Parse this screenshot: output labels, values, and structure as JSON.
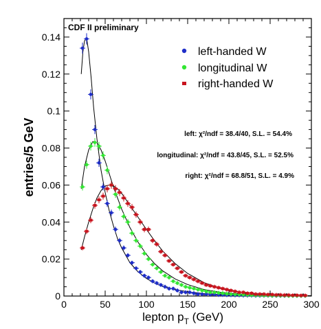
{
  "chart_data": {
    "type": "scatter",
    "title": "",
    "label": "CDF II preliminary",
    "xlabel": "lepton p",
    "xlabel_sub": "T",
    "xlabel_unit": " (GeV)",
    "ylabel": "entries/5 GeV",
    "xlim": [
      0,
      300
    ],
    "ylim": [
      0,
      0.15
    ],
    "x_ticks": [
      0,
      50,
      100,
      150,
      200,
      250,
      300
    ],
    "y_ticks": [
      0,
      0.02,
      0.04,
      0.06,
      0.08,
      0.1,
      0.12,
      0.14
    ],
    "legend_position": "top-right",
    "grid": false,
    "series": [
      {
        "name": "left-handed W",
        "color": "#1f2ec8",
        "marker": "circle",
        "x": [
          22.5,
          27.5,
          32.5,
          37.5,
          42.5,
          47.5,
          52.5,
          57.5,
          62.5,
          67.5,
          72.5,
          77.5,
          82.5,
          87.5,
          92.5,
          97.5,
          102.5,
          107.5,
          112.5,
          117.5,
          122.5,
          127.5,
          132.5,
          137.5,
          142.5,
          147.5,
          152.5,
          157.5,
          162.5,
          167.5,
          172.5,
          177.5,
          182.5,
          187.5,
          192.5,
          197.5,
          202.5,
          207.5,
          212.5,
          217.5,
          222.5,
          227.5,
          232.5,
          237.5,
          242.5,
          247.5,
          252.5,
          257.5,
          262.5,
          267.5,
          272.5,
          277.5,
          282.5,
          287.5,
          292.5
        ],
        "y": [
          0.134,
          0.139,
          0.109,
          0.09,
          0.072,
          0.059,
          0.05,
          0.045,
          0.036,
          0.03,
          0.026,
          0.022,
          0.018,
          0.015,
          0.013,
          0.011,
          0.01,
          0.008,
          0.007,
          0.006,
          0.005,
          0.004,
          0.004,
          0.003,
          0.002,
          0.002,
          0.002,
          0.0015,
          0.001,
          0.001,
          0.001,
          0.0008,
          0.0008,
          0.0006,
          0.0006,
          0.0005,
          0.0005,
          0.0004,
          0.0004,
          0.0003,
          0.0003,
          0.0003,
          0.0002,
          0.0002,
          0.0002,
          0.0002,
          0.0001,
          0.0001,
          0.0001,
          0.0001,
          0.0001,
          0.0001,
          0.0001,
          0.0001,
          0.0001
        ],
        "fit_x": [
          21,
          23,
          25,
          27,
          28,
          30,
          33,
          36,
          40,
          45,
          50,
          55,
          60,
          65,
          70,
          80,
          90,
          100,
          110,
          120,
          135,
          150,
          170,
          190,
          215,
          240,
          270,
          300
        ],
        "fit_y": [
          0.12,
          0.132,
          0.138,
          0.139,
          0.138,
          0.132,
          0.118,
          0.102,
          0.085,
          0.068,
          0.056,
          0.046,
          0.038,
          0.031,
          0.026,
          0.018,
          0.013,
          0.0095,
          0.007,
          0.0052,
          0.0035,
          0.0023,
          0.0013,
          0.0008,
          0.0004,
          0.00025,
          0.00012,
          6e-05
        ],
        "fit_text": "left: χ²/ndf = 38.4/40, S.L. = 54.4%"
      },
      {
        "name": "longitudinal W",
        "color": "#33e633",
        "marker": "circle",
        "x": [
          22.5,
          27.5,
          32.5,
          37.5,
          42.5,
          47.5,
          52.5,
          57.5,
          62.5,
          67.5,
          72.5,
          77.5,
          82.5,
          87.5,
          92.5,
          97.5,
          102.5,
          107.5,
          112.5,
          117.5,
          122.5,
          127.5,
          132.5,
          137.5,
          142.5,
          147.5,
          152.5,
          157.5,
          162.5,
          167.5,
          172.5,
          177.5,
          182.5,
          187.5,
          192.5,
          197.5,
          202.5,
          207.5,
          212.5,
          217.5,
          222.5,
          227.5,
          232.5,
          237.5,
          242.5,
          247.5,
          252.5,
          257.5,
          262.5,
          267.5,
          272.5,
          277.5,
          282.5,
          287.5,
          292.5
        ],
        "y": [
          0.059,
          0.071,
          0.081,
          0.083,
          0.081,
          0.076,
          0.068,
          0.06,
          0.055,
          0.048,
          0.043,
          0.04,
          0.034,
          0.03,
          0.027,
          0.023,
          0.02,
          0.017,
          0.015,
          0.013,
          0.011,
          0.01,
          0.008,
          0.007,
          0.006,
          0.005,
          0.0045,
          0.004,
          0.0035,
          0.003,
          0.0025,
          0.002,
          0.002,
          0.0017,
          0.0015,
          0.0012,
          0.001,
          0.0009,
          0.0008,
          0.0007,
          0.0006,
          0.0005,
          0.0004,
          0.0004,
          0.0003,
          0.0003,
          0.0002,
          0.0002,
          0.0002,
          0.0002,
          0.0001,
          0.0001,
          0.0001,
          0.0001,
          0.0001
        ],
        "fit_x": [
          21,
          25,
          30,
          35,
          40,
          45,
          50,
          55,
          60,
          70,
          80,
          90,
          100,
          110,
          120,
          135,
          150,
          170,
          190,
          215,
          240,
          270,
          300
        ],
        "fit_y": [
          0.058,
          0.07,
          0.079,
          0.0835,
          0.083,
          0.079,
          0.073,
          0.066,
          0.059,
          0.047,
          0.037,
          0.029,
          0.0225,
          0.0175,
          0.0135,
          0.0092,
          0.0062,
          0.0035,
          0.002,
          0.001,
          0.0005,
          0.00022,
          0.0001
        ],
        "fit_text": "longitudinal: χ²/ndf = 43.8/45, S.L. = 52.5%"
      },
      {
        "name": "right-handed W",
        "color": "#c8141e",
        "marker": "square",
        "x": [
          22.5,
          27.5,
          32.5,
          37.5,
          42.5,
          47.5,
          52.5,
          57.5,
          62.5,
          67.5,
          72.5,
          77.5,
          82.5,
          87.5,
          92.5,
          97.5,
          102.5,
          107.5,
          112.5,
          117.5,
          122.5,
          127.5,
          132.5,
          137.5,
          142.5,
          147.5,
          152.5,
          157.5,
          162.5,
          167.5,
          172.5,
          177.5,
          182.5,
          187.5,
          192.5,
          197.5,
          202.5,
          207.5,
          212.5,
          217.5,
          222.5,
          227.5,
          232.5,
          237.5,
          242.5,
          247.5,
          252.5,
          257.5,
          262.5,
          267.5,
          272.5,
          277.5,
          282.5,
          287.5,
          292.5
        ],
        "y": [
          0.026,
          0.035,
          0.041,
          0.049,
          0.052,
          0.054,
          0.058,
          0.06,
          0.058,
          0.056,
          0.053,
          0.05,
          0.048,
          0.044,
          0.04,
          0.036,
          0.036,
          0.03,
          0.028,
          0.024,
          0.022,
          0.019,
          0.017,
          0.015,
          0.013,
          0.011,
          0.01,
          0.009,
          0.008,
          0.007,
          0.006,
          0.0055,
          0.005,
          0.0045,
          0.004,
          0.0035,
          0.003,
          0.0025,
          0.002,
          0.002,
          0.0015,
          0.0015,
          0.001,
          0.001,
          0.001,
          0.0008,
          0.0008,
          0.0006,
          0.0006,
          0.0005,
          0.0005,
          0.0004,
          0.0004,
          0.0003,
          0.0003
        ],
        "fit_x": [
          21,
          25,
          30,
          35,
          40,
          45,
          50,
          55,
          60,
          65,
          70,
          80,
          90,
          100,
          110,
          120,
          135,
          150,
          170,
          190,
          215,
          240,
          270,
          300
        ],
        "fit_y": [
          0.025,
          0.032,
          0.04,
          0.047,
          0.053,
          0.057,
          0.0595,
          0.06,
          0.0595,
          0.058,
          0.0555,
          0.049,
          0.0425,
          0.036,
          0.0298,
          0.0242,
          0.0175,
          0.0122,
          0.0072,
          0.0042,
          0.002,
          0.001,
          0.00045,
          0.0002
        ],
        "fit_text": "right: χ²/ndf = 68.8/51, S.L. = 4.9%"
      }
    ]
  }
}
